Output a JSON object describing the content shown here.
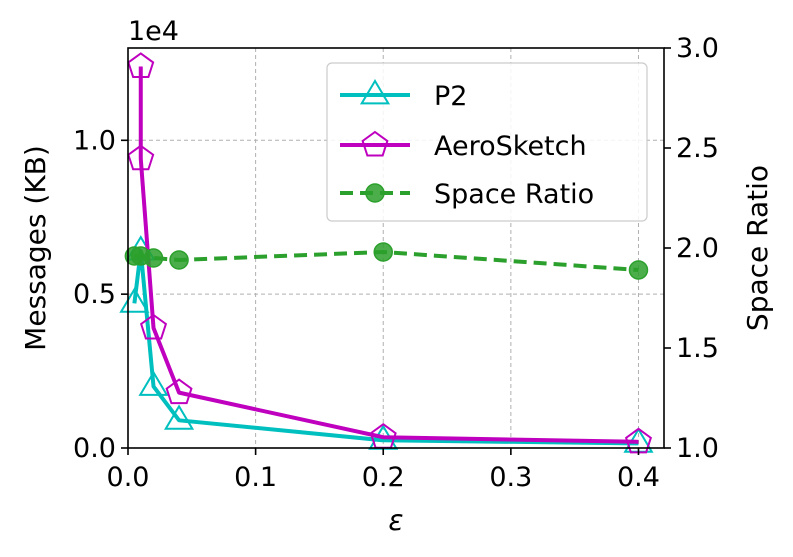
{
  "chart_data": {
    "type": "line",
    "xlabel": "ε",
    "ylabel": "Messages (KB)",
    "y2label": "Space Ratio",
    "offset_text": "1e4",
    "xlim": [
      0,
      0.42
    ],
    "ylim": [
      0,
      1.3
    ],
    "y2lim": [
      1.0,
      3.0
    ],
    "x_ticks": [
      0.0,
      0.1,
      0.2,
      0.3,
      0.4
    ],
    "x_tick_labels": [
      "0.0",
      "0.1",
      "0.2",
      "0.3",
      "0.4"
    ],
    "y_ticks": [
      0.0,
      0.5,
      1.0
    ],
    "y_tick_labels": [
      "0.0",
      "0.5",
      "1.0"
    ],
    "y2_ticks": [
      1.0,
      1.5,
      2.0,
      2.5,
      3.0
    ],
    "y2_tick_labels": [
      "1.0",
      "1.5",
      "2.0",
      "2.5",
      "3.0"
    ],
    "grid": true,
    "legend_position": "top-right",
    "series": [
      {
        "name": "P2",
        "axis": "left",
        "color": "#00bfbf",
        "marker": "triangle",
        "linestyle": "solid",
        "x": [
          0.005,
          0.01,
          0.02,
          0.04,
          0.2,
          0.4
        ],
        "y": [
          0.47,
          0.64,
          0.2,
          0.09,
          0.025,
          0.015
        ]
      },
      {
        "name": "AeroSketch",
        "axis": "left",
        "color": "#bf00bf",
        "marker": "pentagon",
        "linestyle": "solid",
        "x": [
          0.01,
          0.01,
          0.02,
          0.04,
          0.2,
          0.4
        ],
        "y": [
          1.24,
          0.94,
          0.39,
          0.18,
          0.035,
          0.02
        ]
      },
      {
        "name": "Space Ratio",
        "axis": "right",
        "color": "#2ca02c",
        "marker": "circle",
        "linestyle": "dashed",
        "x": [
          0.005,
          0.01,
          0.02,
          0.04,
          0.2,
          0.4
        ],
        "y": [
          1.96,
          1.96,
          1.95,
          1.94,
          1.98,
          1.89
        ]
      }
    ]
  }
}
